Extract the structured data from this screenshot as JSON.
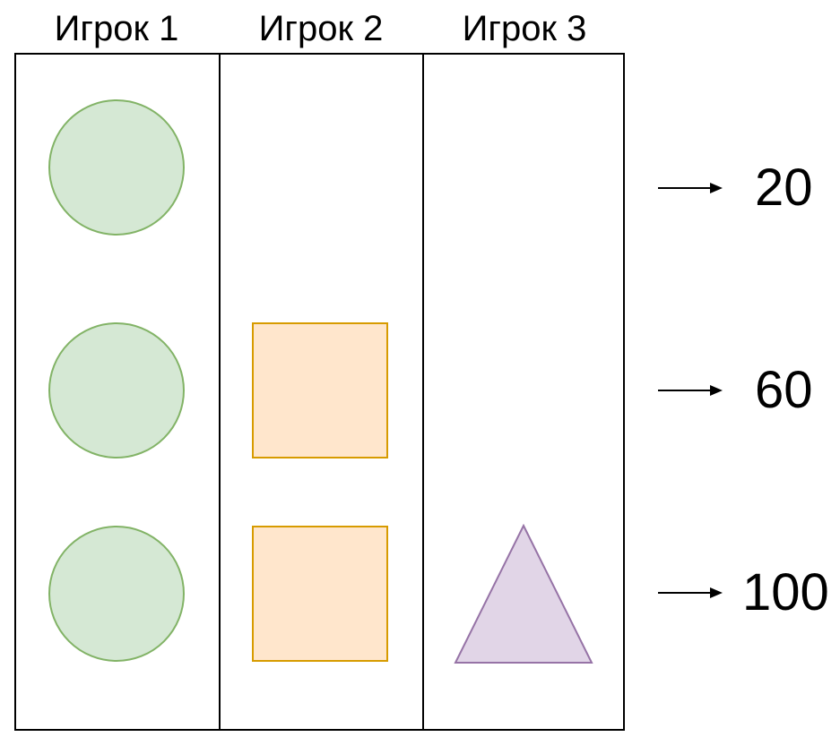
{
  "columns": [
    {
      "title": "Игрок 1"
    },
    {
      "title": "Игрок 2"
    },
    {
      "title": "Игрок 3"
    }
  ],
  "rows": [
    {
      "value": "20"
    },
    {
      "value": "60"
    },
    {
      "value": "100"
    }
  ],
  "cells": {
    "player1": [
      "circle",
      "circle",
      "circle"
    ],
    "player2": [
      "",
      "square",
      "square"
    ],
    "player3": [
      "",
      "",
      "triangle"
    ]
  },
  "colors": {
    "circle_fill": "#d5e8d4",
    "circle_stroke": "#82b366",
    "square_fill": "#ffe6cc",
    "square_stroke": "#d79b00",
    "triangle_fill": "#e1d5e7",
    "triangle_stroke": "#9673a6",
    "line": "#000000"
  }
}
